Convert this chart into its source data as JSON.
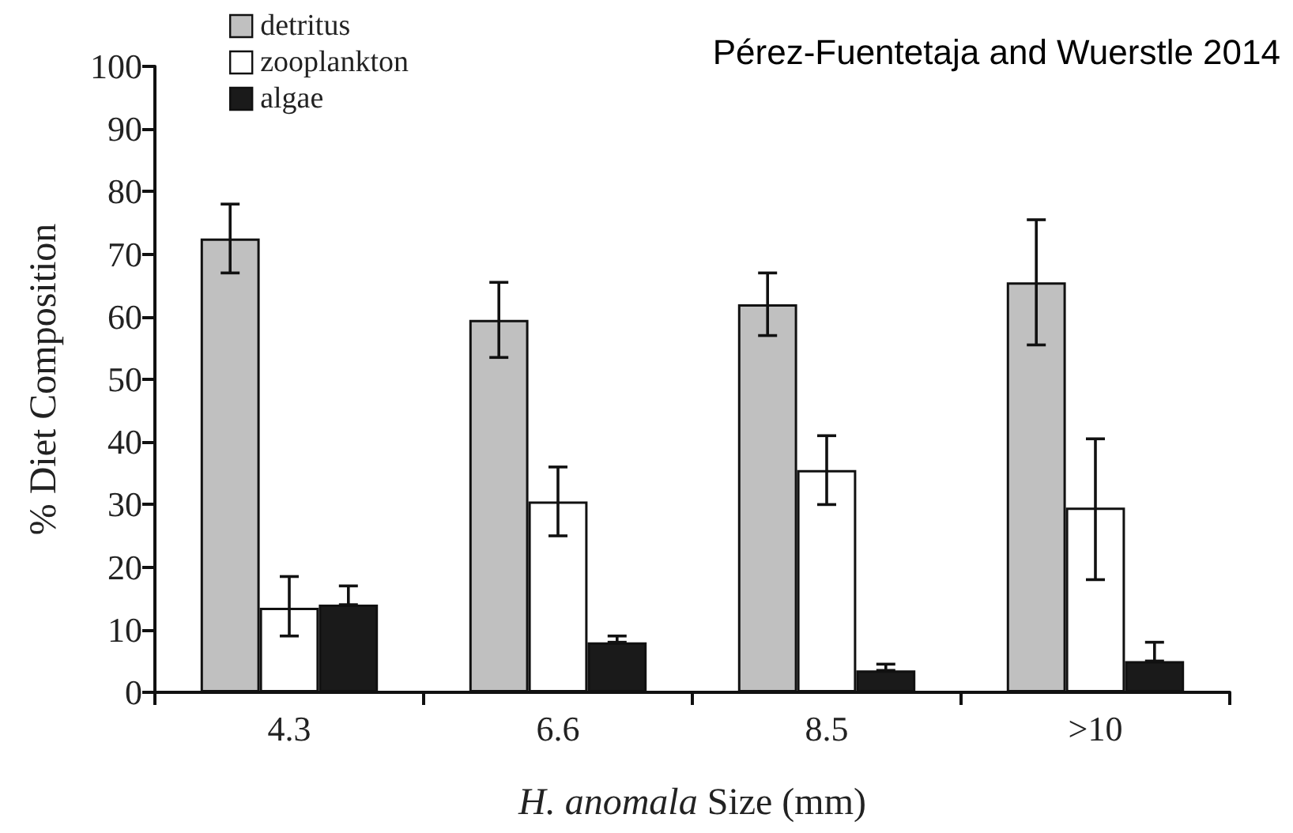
{
  "chart_data": {
    "type": "bar",
    "xlabel": "H. anomala Size (mm)",
    "ylabel": "% Diet Composition",
    "categories": [
      "4.3",
      "6.6",
      "8.5",
      ">10"
    ],
    "series": [
      {
        "name": "detritus",
        "color": "#c0c0c0",
        "values": [
          72.5,
          59.5,
          62,
          65.5
        ],
        "errors": [
          [
            67,
            78
          ],
          [
            53.5,
            65.5
          ],
          [
            57,
            67
          ],
          [
            55.5,
            75.5
          ]
        ]
      },
      {
        "name": "zooplankton",
        "color": "#ffffff",
        "values": [
          13.5,
          30.5,
          35.5,
          29.5
        ],
        "errors": [
          [
            9,
            18.5
          ],
          [
            25,
            36
          ],
          [
            30,
            41
          ],
          [
            18,
            40.5
          ]
        ]
      },
      {
        "name": "algae",
        "color": "#1a1a1a",
        "values": [
          14,
          8,
          3.5,
          5
        ],
        "errors": [
          [
            14,
            17
          ],
          [
            8,
            9
          ],
          [
            3.5,
            4.5
          ],
          [
            5,
            8
          ]
        ]
      }
    ],
    "ylim": [
      0,
      100
    ],
    "yticks": [
      0,
      10,
      20,
      30,
      40,
      50,
      60,
      70,
      80,
      90,
      100
    ],
    "annotations": [
      "Pérez-Fuentetaja and Wuerstle 2014"
    ],
    "legend": "top left",
    "grid": false
  }
}
